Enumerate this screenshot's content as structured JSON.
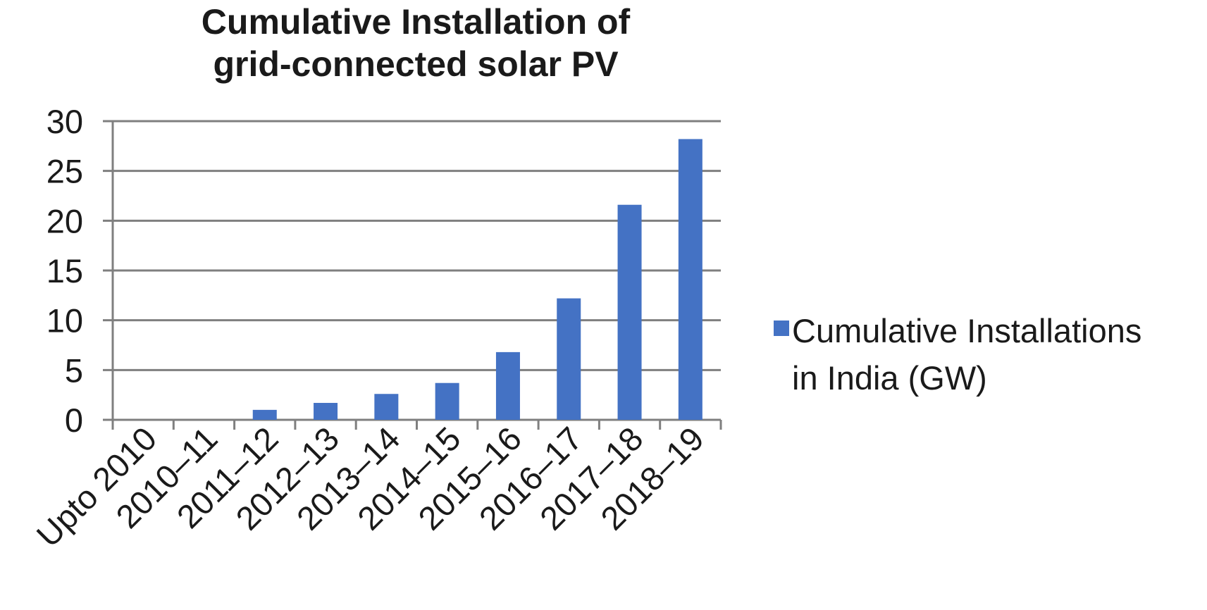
{
  "chart_data": {
    "type": "bar",
    "title_lines": [
      "Cumulative Installation of",
      "grid-connected solar PV"
    ],
    "categories": [
      "Upto 2010",
      "2010–11",
      "2011–12",
      "2012–13",
      "2013–14",
      "2014–15",
      "2015–16",
      "2016–17",
      "2017–18",
      "2018–19"
    ],
    "series": [
      {
        "name": "Cumulative Installations in India (GW)",
        "legend_lines": [
          "Cumulative Installations",
          "in India (GW)"
        ],
        "values": [
          0,
          0,
          1.0,
          1.7,
          2.6,
          3.7,
          6.8,
          12.2,
          21.6,
          28.2
        ],
        "color": "#4472c4"
      }
    ],
    "yticks": [
      "0",
      "5",
      "10",
      "15",
      "20",
      "25",
      "30"
    ],
    "ylim": [
      0,
      30
    ],
    "xlabel": "",
    "ylabel": "",
    "grid": true,
    "legend_position": "right"
  }
}
